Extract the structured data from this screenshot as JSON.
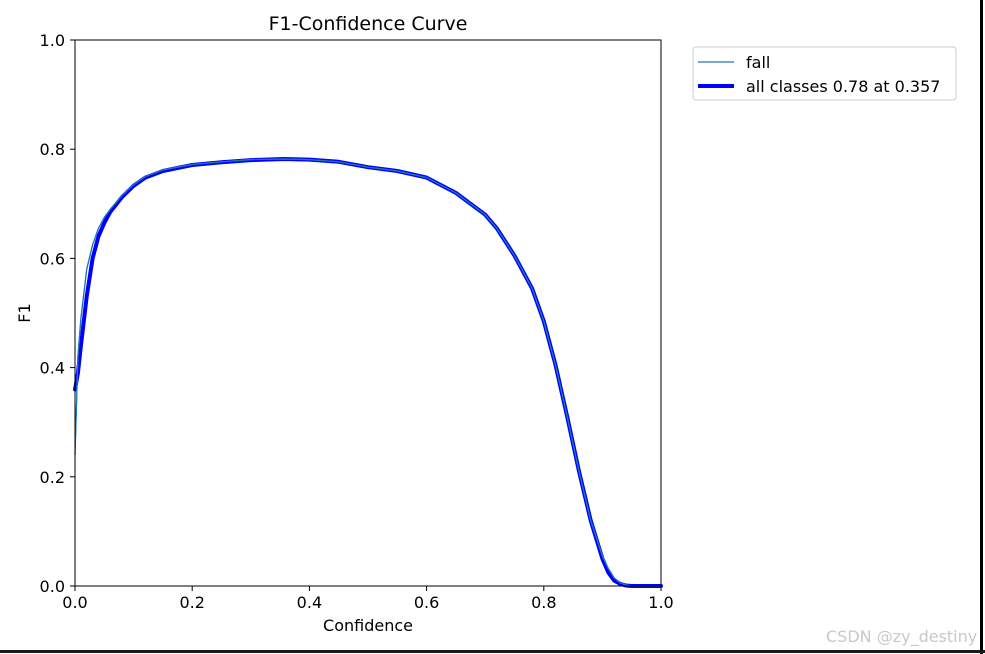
{
  "chart_data": {
    "type": "line",
    "title": "F1-Confidence Curve",
    "xlabel": "Confidence",
    "ylabel": "F1",
    "xlim": [
      0.0,
      1.0
    ],
    "ylim": [
      0.0,
      1.0
    ],
    "xticks": [
      "0.0",
      "0.2",
      "0.4",
      "0.6",
      "0.8",
      "1.0"
    ],
    "yticks": [
      "0.0",
      "0.2",
      "0.4",
      "0.6",
      "0.8",
      "1.0"
    ],
    "grid": false,
    "legend_position": "outside-top-right",
    "series": [
      {
        "name": "fall",
        "color": "#1f77b4",
        "x": [
          0.0,
          0.005,
          0.01,
          0.02,
          0.03,
          0.04,
          0.05,
          0.06,
          0.08,
          0.1,
          0.12,
          0.15,
          0.2,
          0.25,
          0.3,
          0.357,
          0.4,
          0.45,
          0.5,
          0.55,
          0.6,
          0.65,
          0.7,
          0.72,
          0.75,
          0.78,
          0.8,
          0.82,
          0.84,
          0.86,
          0.88,
          0.9,
          0.91,
          0.92,
          0.93,
          0.94,
          0.95,
          0.97,
          1.0
        ],
        "y": [
          0.24,
          0.42,
          0.49,
          0.58,
          0.625,
          0.655,
          0.675,
          0.69,
          0.715,
          0.735,
          0.75,
          0.762,
          0.772,
          0.777,
          0.781,
          0.782,
          0.781,
          0.777,
          0.767,
          0.76,
          0.748,
          0.72,
          0.68,
          0.655,
          0.605,
          0.545,
          0.485,
          0.405,
          0.31,
          0.21,
          0.12,
          0.055,
          0.032,
          0.015,
          0.006,
          0.002,
          0.0,
          0.0,
          0.0
        ]
      },
      {
        "name": "all classes 0.78 at 0.357",
        "color": "#0000ff",
        "x": [
          0.0,
          0.005,
          0.01,
          0.02,
          0.03,
          0.04,
          0.05,
          0.06,
          0.08,
          0.1,
          0.12,
          0.15,
          0.2,
          0.25,
          0.3,
          0.357,
          0.4,
          0.45,
          0.5,
          0.55,
          0.6,
          0.65,
          0.7,
          0.72,
          0.75,
          0.78,
          0.8,
          0.82,
          0.84,
          0.86,
          0.88,
          0.9,
          0.91,
          0.92,
          0.93,
          0.94,
          0.95,
          0.97,
          1.0
        ],
        "y": [
          0.36,
          0.39,
          0.44,
          0.53,
          0.6,
          0.64,
          0.665,
          0.685,
          0.712,
          0.733,
          0.748,
          0.76,
          0.771,
          0.776,
          0.78,
          0.782,
          0.781,
          0.777,
          0.767,
          0.76,
          0.748,
          0.72,
          0.68,
          0.655,
          0.605,
          0.545,
          0.485,
          0.405,
          0.31,
          0.21,
          0.12,
          0.05,
          0.025,
          0.01,
          0.004,
          0.001,
          0.0,
          0.0,
          0.0
        ]
      }
    ]
  },
  "watermark": "CSDN @zy_destiny"
}
